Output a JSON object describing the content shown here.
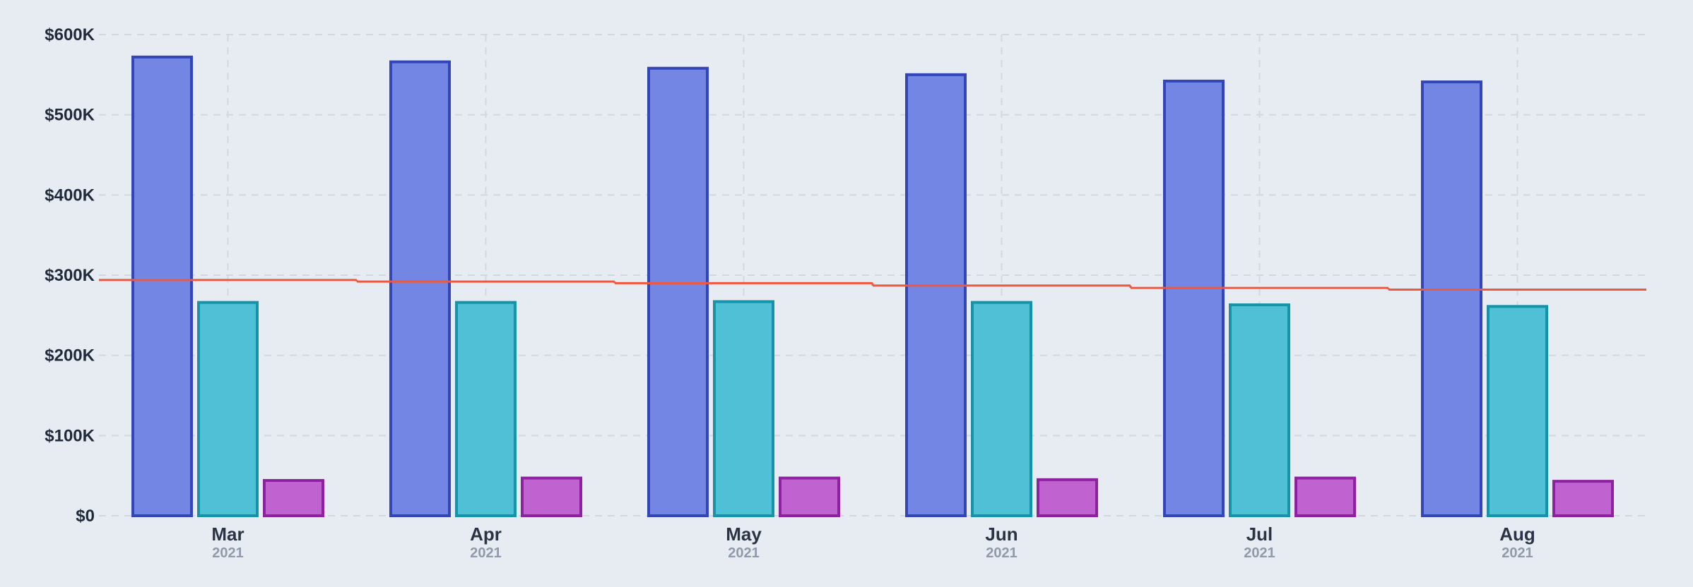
{
  "chart_data": {
    "type": "bar",
    "categories": [
      "Mar",
      "Apr",
      "May",
      "Jun",
      "Jul",
      "Aug"
    ],
    "category_sublabels": [
      "2021",
      "2021",
      "2021",
      "2021",
      "2021",
      "2021"
    ],
    "series": [
      {
        "values": [
          572000,
          566000,
          558000,
          550000,
          542000,
          541000
        ],
        "color": "#7386e3",
        "stroke": "#3346b8"
      },
      {
        "values": [
          266000,
          266000,
          267000,
          266000,
          263000,
          261000
        ],
        "color": "#4fc0d6",
        "stroke": "#1593a8"
      },
      {
        "values": [
          44000,
          47000,
          47000,
          45000,
          47000,
          43000
        ],
        "color": "#c062d0",
        "stroke": "#8c22a0"
      }
    ],
    "line_series": {
      "values": [
        294000,
        292000,
        290000,
        287000,
        284000,
        282000
      ],
      "color": "#f0573c"
    },
    "ylim": [
      0,
      600000
    ],
    "yticks": [
      0,
      100000,
      200000,
      300000,
      400000,
      500000,
      600000
    ],
    "ytick_labels": [
      "$0",
      "$100K",
      "$200K",
      "$300K",
      "$400K",
      "$500K",
      "$600K"
    ],
    "grid": true,
    "title": "",
    "xlabel": "",
    "ylabel": ""
  }
}
